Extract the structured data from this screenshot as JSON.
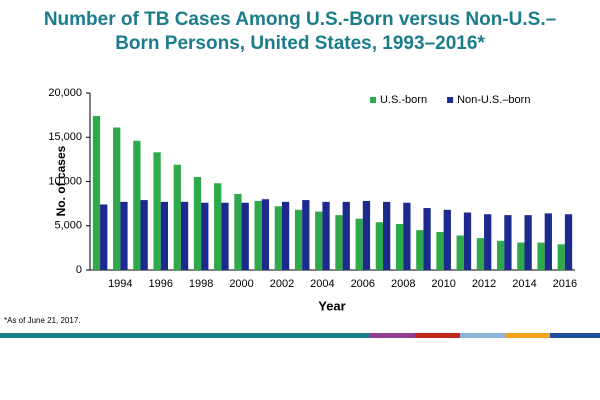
{
  "chart_data": {
    "type": "bar",
    "title": "Number of TB Cases Among U.S.-Born versus Non-U.S.–Born Persons, United States, 1993–2016*",
    "footnote": "*As of June 21, 2017.",
    "x_label": "Year",
    "y_label": "No. of cases",
    "categories": [
      null,
      "1994",
      null,
      "1996",
      null,
      "1998",
      null,
      "2000",
      null,
      "2002",
      null,
      "2004",
      null,
      "2006",
      null,
      "2008",
      null,
      "2010",
      null,
      "2012",
      null,
      "2014",
      null,
      "2016"
    ],
    "series": [
      {
        "name": "U.S.-born",
        "color": "#2eaa4a",
        "values": [
          17400,
          16100,
          14600,
          13300,
          11900,
          10500,
          9800,
          8600,
          7800,
          7200,
          6800,
          6600,
          6200,
          5800,
          5400,
          5200,
          4500,
          4300,
          3900,
          3600,
          3300,
          3100,
          3100,
          2900
        ]
      },
      {
        "name": "Non-U.S.–born",
        "color": "#1c2a8e",
        "values": [
          7400,
          7700,
          7900,
          7700,
          7700,
          7600,
          7600,
          7600,
          8000,
          7700,
          7900,
          7700,
          7700,
          7800,
          7700,
          7600,
          7000,
          6800,
          6500,
          6300,
          6200,
          6200,
          6400,
          6300
        ]
      }
    ],
    "ylim": [
      0,
      20000
    ],
    "yticks": [
      0,
      {
        "value": 5000,
        "label": "5,000"
      },
      {
        "value": 10000,
        "label": "10.000"
      },
      {
        "value": 15000,
        "label": "15,000"
      },
      {
        "value": 20000,
        "label": "20,000"
      }
    ],
    "legend": "upper right",
    "grid": false
  }
}
